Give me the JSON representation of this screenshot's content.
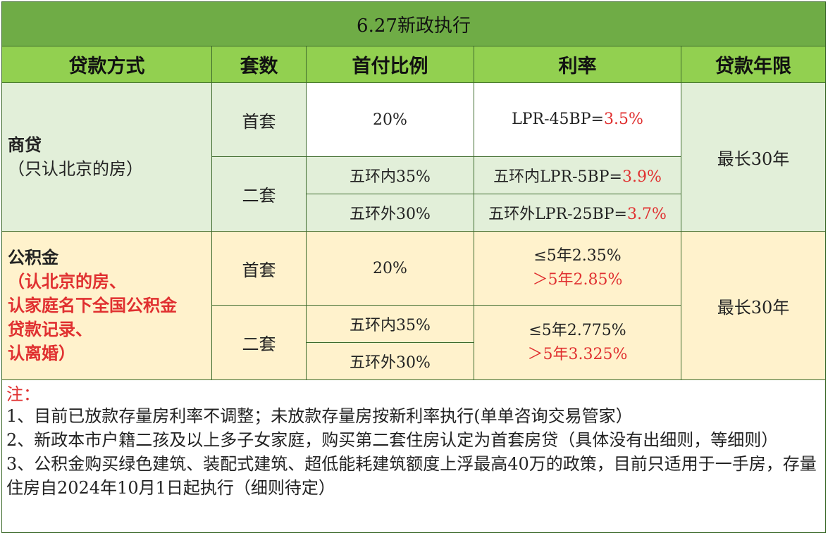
{
  "title": "6.27新政执行",
  "headers": {
    "method": "贷款方式",
    "sets": "套数",
    "down_payment": "首付比例",
    "rate": "利率",
    "term": "贷款年限"
  },
  "commercial": {
    "method_title": "商贷",
    "method_note": "（只认北京的房）",
    "first_label": "首套",
    "first_down": "20%",
    "first_rate_prefix": "LPR-45BP=",
    "first_rate_value": "3.5%",
    "second_label": "二套",
    "second_down_inner": "五环内35%",
    "second_down_outer": "五环外30%",
    "second_rate_inner_prefix": "五环内LPR-5BP=",
    "second_rate_inner_value": "3.9%",
    "second_rate_outer_prefix": "五环外LPR-25BP=",
    "second_rate_outer_value": "3.7%",
    "term": "最长30年"
  },
  "provident": {
    "method_title": "公积金",
    "method_note_1": "（认北京的房、",
    "method_note_2": "认家庭名下全国公积金",
    "method_note_3": "贷款记录、",
    "method_note_4": "认离婚）",
    "first_label": "首套",
    "first_down": "20%",
    "first_rate_le": "≤5年2.35%",
    "first_rate_gt": "＞5年2.85%",
    "second_label": "二套",
    "second_down_inner": "五环内35%",
    "second_down_outer": "五环外30%",
    "second_rate_le": "≤5年2.775%",
    "second_rate_gt": "＞5年3.325%",
    "term": "最长30年"
  },
  "notes": {
    "heading": "注：",
    "items": [
      "1、目前已放款存量房利率不调整；未放款存量房按新利率执行(单单咨询交易管家）",
      "2、新政本市户籍二孩及以上多子女家庭，购买第二套住房认定为首套房贷（具体没有出细则，等细则）",
      "3、公积金购买绿色建筑、装配式建筑、超低能耗建筑额度上浮最高40万的政策，目前只适用于一手房，存量住房自2024年10月1日起执行（细则待定）"
    ]
  },
  "colors": {
    "title_bg": "#6fac46",
    "header_bg": "#92d050",
    "commercial_bg": "#e2efd9",
    "provident_bg": "#fff2cc",
    "highlight": "#e03030"
  }
}
